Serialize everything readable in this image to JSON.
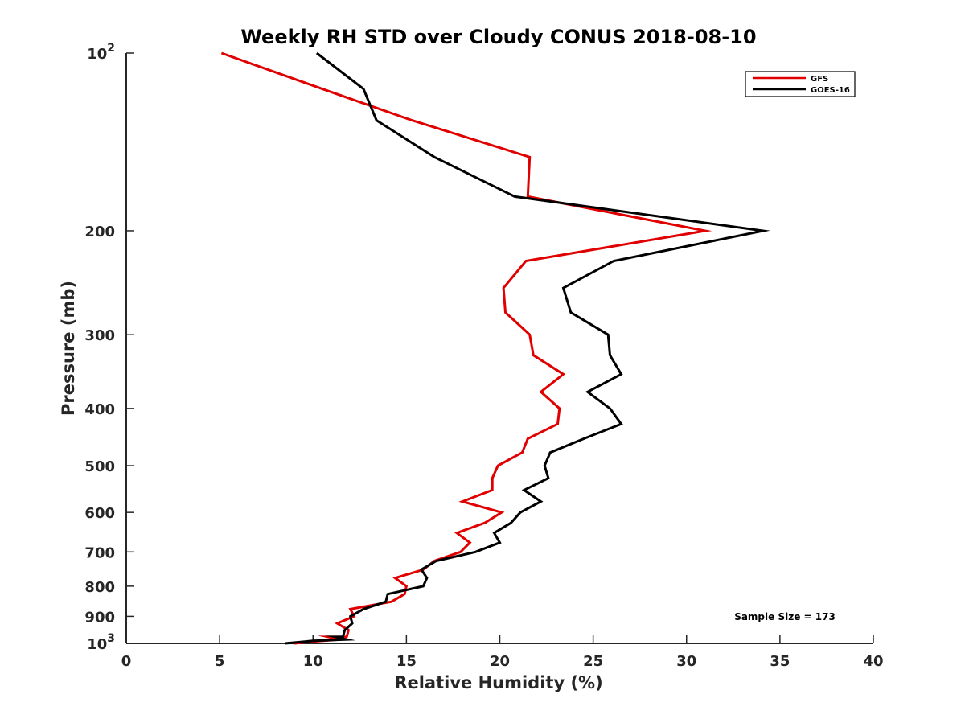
{
  "chart_data": {
    "type": "line",
    "title": "Weekly RH STD over Cloudy CONUS 2018-08-10",
    "xlabel": "Relative Humidity (%)",
    "ylabel": "Pressure (mb)",
    "xlim": [
      0,
      40
    ],
    "ylim": [
      100,
      1000
    ],
    "y_scale": "log",
    "y_reversed": true,
    "grid": false,
    "legend_position": "top-right",
    "x_ticks": [
      0,
      5,
      10,
      15,
      20,
      25,
      30,
      35,
      40
    ],
    "y_ticks": [
      {
        "value": 100,
        "base": "10",
        "exp": "2"
      },
      {
        "value": 200,
        "text": "200"
      },
      {
        "value": 300,
        "text": "300"
      },
      {
        "value": 400,
        "text": "400"
      },
      {
        "value": 500,
        "text": "500"
      },
      {
        "value": 600,
        "text": "600"
      },
      {
        "value": 700,
        "text": "700"
      },
      {
        "value": 800,
        "text": "800"
      },
      {
        "value": 900,
        "text": "900"
      },
      {
        "value": 1000,
        "base": "10",
        "exp": "3"
      }
    ],
    "annotation": "Sample Size = 173",
    "series": [
      {
        "name": "GFS",
        "color": "#e00000",
        "points": [
          [
            5.1,
            100
          ],
          [
            10.5,
            115
          ],
          [
            15.3,
            130
          ],
          [
            21.6,
            150
          ],
          [
            21.5,
            175
          ],
          [
            31.0,
            200
          ],
          [
            21.4,
            225
          ],
          [
            20.2,
            250
          ],
          [
            20.3,
            275
          ],
          [
            21.6,
            300
          ],
          [
            21.8,
            325
          ],
          [
            23.4,
            350
          ],
          [
            22.2,
            375
          ],
          [
            23.2,
            400
          ],
          [
            23.1,
            425
          ],
          [
            21.5,
            450
          ],
          [
            21.2,
            475
          ],
          [
            19.9,
            500
          ],
          [
            19.6,
            525
          ],
          [
            19.6,
            550
          ],
          [
            18.0,
            575
          ],
          [
            20.1,
            600
          ],
          [
            19.2,
            625
          ],
          [
            17.7,
            650
          ],
          [
            18.4,
            675
          ],
          [
            17.9,
            700
          ],
          [
            16.5,
            725
          ],
          [
            15.9,
            750
          ],
          [
            14.4,
            775
          ],
          [
            15.0,
            800
          ],
          [
            14.9,
            825
          ],
          [
            14.2,
            850
          ],
          [
            12.0,
            875
          ],
          [
            12.2,
            900
          ],
          [
            11.3,
            925
          ],
          [
            11.9,
            950
          ],
          [
            11.8,
            975
          ],
          [
            10.8,
            975
          ],
          [
            11.4,
            985
          ],
          [
            10.2,
            992
          ],
          [
            9.0,
            1000
          ]
        ]
      },
      {
        "name": "GOES-16",
        "color": "#000000",
        "points": [
          [
            10.2,
            100
          ],
          [
            12.7,
            115
          ],
          [
            13.4,
            130
          ],
          [
            16.5,
            150
          ],
          [
            20.8,
            175
          ],
          [
            34.1,
            200
          ],
          [
            26.1,
            225
          ],
          [
            23.4,
            250
          ],
          [
            23.8,
            275
          ],
          [
            25.8,
            300
          ],
          [
            25.9,
            325
          ],
          [
            26.5,
            350
          ],
          [
            24.7,
            375
          ],
          [
            25.9,
            400
          ],
          [
            26.5,
            425
          ],
          [
            24.5,
            450
          ],
          [
            22.7,
            475
          ],
          [
            22.4,
            500
          ],
          [
            22.6,
            525
          ],
          [
            21.3,
            550
          ],
          [
            22.2,
            575
          ],
          [
            21.1,
            600
          ],
          [
            20.6,
            625
          ],
          [
            19.7,
            650
          ],
          [
            20.0,
            675
          ],
          [
            18.7,
            700
          ],
          [
            16.6,
            725
          ],
          [
            15.8,
            750
          ],
          [
            16.1,
            775
          ],
          [
            15.9,
            800
          ],
          [
            14.0,
            825
          ],
          [
            13.9,
            850
          ],
          [
            12.7,
            875
          ],
          [
            12.0,
            900
          ],
          [
            12.1,
            925
          ],
          [
            11.7,
            950
          ],
          [
            11.6,
            975
          ],
          [
            11.2,
            975
          ],
          [
            11.8,
            985
          ],
          [
            10.0,
            990
          ],
          [
            8.5,
            1000
          ]
        ]
      }
    ]
  }
}
